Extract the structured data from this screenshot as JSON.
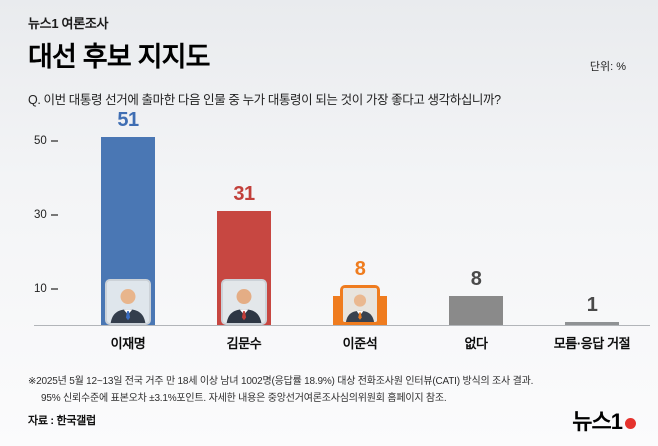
{
  "header": {
    "kicker": "뉴스1 여론조사",
    "title": "대선 후보 지지도",
    "unit": "단위: %",
    "question": "Q. 이번 대통령 선거에 출마한 다음 인물 중 누가 대통령이 되는 것이 가장 좋다고 생각하십니까?"
  },
  "chart_data": {
    "type": "bar",
    "title": "대선 후보 지지도",
    "categories": [
      "이재명",
      "김문수",
      "이준석",
      "없다",
      "모름·응답 거절"
    ],
    "values": [
      51,
      31,
      8,
      8,
      1
    ],
    "unit": "%",
    "ylim": [
      0,
      55
    ],
    "yticks": [
      10,
      30,
      50
    ],
    "grid": false,
    "legend": "none",
    "colors": [
      "#4a77b4",
      "#c74741",
      "#ef7c1f",
      "#8a8a8a",
      "#8f9294"
    ],
    "value_colors": [
      "#3f6eb3",
      "#c23f3a",
      "#ef7c1f",
      "#4a4a4a",
      "#4a4a4a"
    ],
    "photo_borders": [
      "#ccd2d8",
      "#ccd2d8",
      "#ef7c1f"
    ],
    "tie_colors": [
      "#3a6cc0",
      "#c23f3a",
      "#ef7c1f"
    ],
    "has_photo": [
      true,
      true,
      true,
      false,
      false
    ]
  },
  "footer": {
    "note_line1": "※2025년 5월 12~13일 전국 거주 만 18세 이상 남녀 1002명(응답률 18.9%) 대상 전화조사원 인터뷰(CATI) 방식의 조사 결과.",
    "note_line2": "95% 신뢰수준에 표본오차 ±3.1%포인트. 자세한 내용은 중앙선거여론조사심의위원회 홈페이지 참조.",
    "source": "자료 : 한국갤럽",
    "logo": "뉴스1"
  }
}
